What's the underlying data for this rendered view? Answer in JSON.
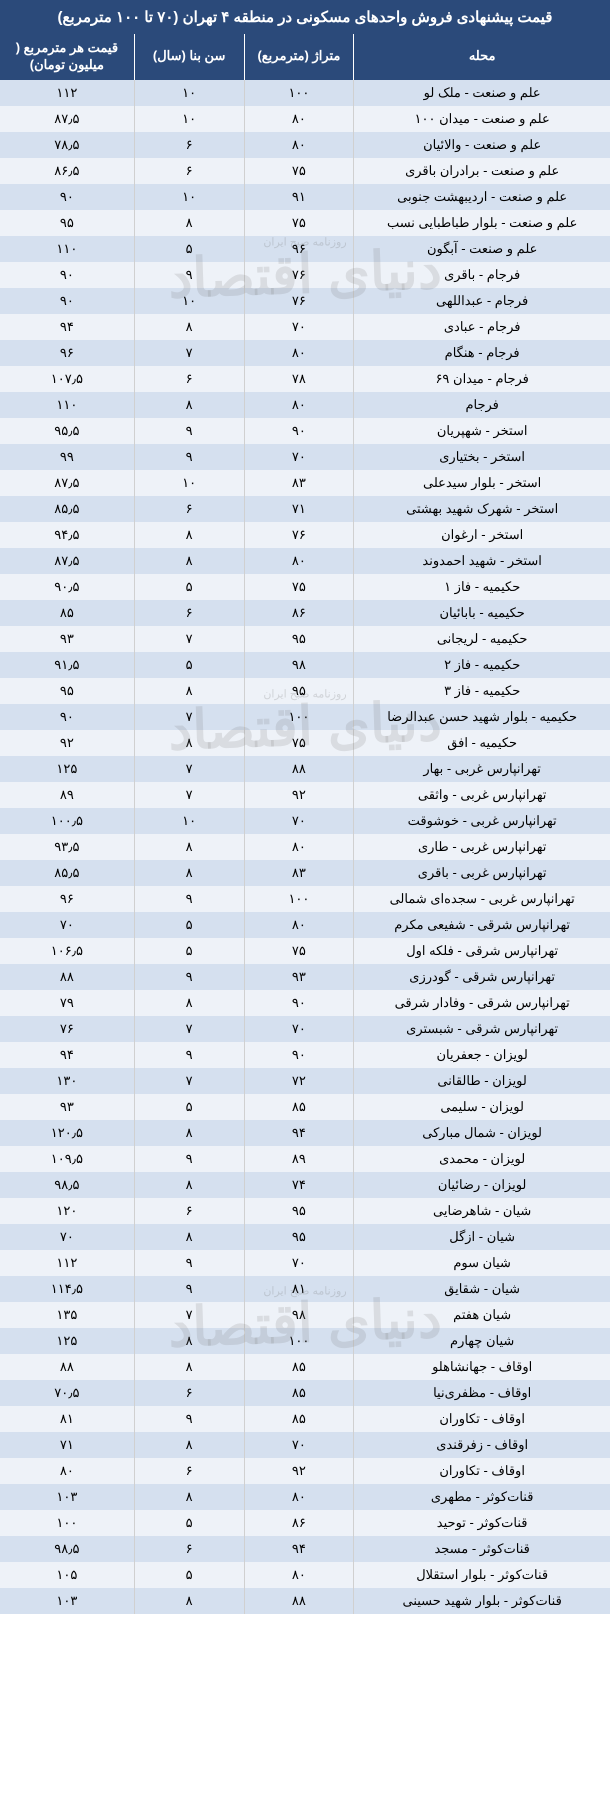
{
  "title": "قیمت پیشنهادی فروش واحدهای مسکونی در منطقه ۴ تهران (۷۰ تا ۱۰۰ مترمربع)",
  "colors": {
    "header_bg": "#2b4a7a",
    "row_odd": "#d5e0ef",
    "row_even": "#eef2f8",
    "text": "#000000",
    "header_text": "#ffffff"
  },
  "columns": [
    {
      "key": "neighborhood",
      "label": "محله"
    },
    {
      "key": "area",
      "label": "متراژ\n(مترمربع)"
    },
    {
      "key": "age",
      "label": "سن بنا\n(سال)"
    },
    {
      "key": "price",
      "label": "قیمت هر مترمربع\n( میلیون تومان)"
    }
  ],
  "watermark": {
    "main": "دنیای اقتصاد",
    "sub": "روزنامه صبح ایران"
  },
  "watermark_positions_pct": [
    17,
    45,
    82
  ],
  "rows": [
    {
      "neighborhood": "علم و صنعت - ملک لو",
      "area": "۱۰۰",
      "age": "۱۰",
      "price": "۱۱۲"
    },
    {
      "neighborhood": "علم و صنعت - میدان ۱۰۰",
      "area": "۸۰",
      "age": "۱۰",
      "price": "۸۷٫۵"
    },
    {
      "neighborhood": "علم و صنعت - والائیان",
      "area": "۸۰",
      "age": "۶",
      "price": "۷۸٫۵"
    },
    {
      "neighborhood": "علم و صنعت - برادران باقری",
      "area": "۷۵",
      "age": "۶",
      "price": "۸۶٫۵"
    },
    {
      "neighborhood": "علم و صنعت - اردیبهشت جنوبی",
      "area": "۹۱",
      "age": "۱۰",
      "price": "۹۰"
    },
    {
      "neighborhood": "علم و صنعت - بلوار طباطبایی نسب",
      "area": "۷۵",
      "age": "۸",
      "price": "۹۵"
    },
    {
      "neighborhood": "علم و صنعت - آبگون",
      "area": "۹۶",
      "age": "۵",
      "price": "۱۱۰"
    },
    {
      "neighborhood": "فرجام - باقری",
      "area": "۷۶",
      "age": "۹",
      "price": "۹۰"
    },
    {
      "neighborhood": "فرجام - عبداللهی",
      "area": "۷۶",
      "age": "۱۰",
      "price": "۹۰"
    },
    {
      "neighborhood": "فرجام - عبادی",
      "area": "۷۰",
      "age": "۸",
      "price": "۹۴"
    },
    {
      "neighborhood": "فرجام - هنگام",
      "area": "۸۰",
      "age": "۷",
      "price": "۹۶"
    },
    {
      "neighborhood": "فرجام - میدان ۶۹",
      "area": "۷۸",
      "age": "۶",
      "price": "۱۰۷٫۵"
    },
    {
      "neighborhood": "فرجام",
      "area": "۸۰",
      "age": "۸",
      "price": "۱۱۰"
    },
    {
      "neighborhood": "استخر - شهپریان",
      "area": "۹۰",
      "age": "۹",
      "price": "۹۵٫۵"
    },
    {
      "neighborhood": "استخر - بختیاری",
      "area": "۷۰",
      "age": "۹",
      "price": "۹۹"
    },
    {
      "neighborhood": "استخر - بلوار سیدعلی",
      "area": "۸۳",
      "age": "۱۰",
      "price": "۸۷٫۵"
    },
    {
      "neighborhood": "استخر - شهرک شهید بهشتی",
      "area": "۷۱",
      "age": "۶",
      "price": "۸۵٫۵"
    },
    {
      "neighborhood": "استخر - ارغوان",
      "area": "۷۶",
      "age": "۸",
      "price": "۹۴٫۵"
    },
    {
      "neighborhood": "استخر - شهید احمدوند",
      "area": "۸۰",
      "age": "۸",
      "price": "۸۷٫۵"
    },
    {
      "neighborhood": "حکیمیه - فاز ۱",
      "area": "۷۵",
      "age": "۵",
      "price": "۹۰٫۵"
    },
    {
      "neighborhood": "حکیمیه - بابائیان",
      "area": "۸۶",
      "age": "۶",
      "price": "۸۵"
    },
    {
      "neighborhood": "حکیمیه - لریجانی",
      "area": "۹۵",
      "age": "۷",
      "price": "۹۳"
    },
    {
      "neighborhood": "حکیمیه - فاز ۲",
      "area": "۹۸",
      "age": "۵",
      "price": "۹۱٫۵"
    },
    {
      "neighborhood": "حکیمیه - فاز ۳",
      "area": "۹۵",
      "age": "۸",
      "price": "۹۵"
    },
    {
      "neighborhood": "حکیمیه - بلوار شهید حسن عبدالرضا",
      "area": "۱۰۰",
      "age": "۷",
      "price": "۹۰"
    },
    {
      "neighborhood": "حکیمیه - افق",
      "area": "۷۵",
      "age": "۸",
      "price": "۹۲"
    },
    {
      "neighborhood": "تهرانپارس غربی - بهار",
      "area": "۸۸",
      "age": "۷",
      "price": "۱۲۵"
    },
    {
      "neighborhood": "تهرانپارس غربی - واثقی",
      "area": "۹۲",
      "age": "۷",
      "price": "۸۹"
    },
    {
      "neighborhood": "تهرانپارس غربی - خوشوقت",
      "area": "۷۰",
      "age": "۱۰",
      "price": "۱۰۰٫۵"
    },
    {
      "neighborhood": "تهرانپارس غربی - طاری",
      "area": "۸۰",
      "age": "۸",
      "price": "۹۳٫۵"
    },
    {
      "neighborhood": "تهرانپارس غربی - باقری",
      "area": "۸۳",
      "age": "۸",
      "price": "۸۵٫۵"
    },
    {
      "neighborhood": "تهرانپارس غربی - سجده‌ای شمالی",
      "area": "۱۰۰",
      "age": "۹",
      "price": "۹۶"
    },
    {
      "neighborhood": "تهرانپارس شرقی - شفیعی مکرم",
      "area": "۸۰",
      "age": "۵",
      "price": "۷۰"
    },
    {
      "neighborhood": "تهرانپارس شرقی - فلکه اول",
      "area": "۷۵",
      "age": "۵",
      "price": "۱۰۶٫۵"
    },
    {
      "neighborhood": "تهرانپارس شرقی - گودرزی",
      "area": "۹۳",
      "age": "۹",
      "price": "۸۸"
    },
    {
      "neighborhood": "تهرانپارس شرقی - وفادار شرقی",
      "area": "۹۰",
      "age": "۸",
      "price": "۷۹"
    },
    {
      "neighborhood": "تهرانپارس شرقی - شبستری",
      "area": "۷۰",
      "age": "۷",
      "price": "۷۶"
    },
    {
      "neighborhood": "لویزان - جعفریان",
      "area": "۹۰",
      "age": "۹",
      "price": "۹۴"
    },
    {
      "neighborhood": "لویزان - طالقانی",
      "area": "۷۲",
      "age": "۷",
      "price": "۱۳۰"
    },
    {
      "neighborhood": "لویزان - سلیمی",
      "area": "۸۵",
      "age": "۵",
      "price": "۹۳"
    },
    {
      "neighborhood": "لویزان - شمال مبارکی",
      "area": "۹۴",
      "age": "۸",
      "price": "۱۲۰٫۵"
    },
    {
      "neighborhood": "لویزان - محمدی",
      "area": "۸۹",
      "age": "۹",
      "price": "۱۰۹٫۵"
    },
    {
      "neighborhood": "لویزان - رضائیان",
      "area": "۷۴",
      "age": "۸",
      "price": "۹۸٫۵"
    },
    {
      "neighborhood": "شیان - شاهرضایی",
      "area": "۹۵",
      "age": "۶",
      "price": "۱۲۰"
    },
    {
      "neighborhood": "شیان - ازگل",
      "area": "۹۵",
      "age": "۸",
      "price": "۷۰"
    },
    {
      "neighborhood": "شیان سوم",
      "area": "۷۰",
      "age": "۹",
      "price": "۱۱۲"
    },
    {
      "neighborhood": "شیان - شقایق",
      "area": "۸۱",
      "age": "۹",
      "price": "۱۱۴٫۵"
    },
    {
      "neighborhood": "شیان هفتم",
      "area": "۹۸",
      "age": "۷",
      "price": "۱۳۵"
    },
    {
      "neighborhood": "شیان چهارم",
      "area": "۱۰۰",
      "age": "۸",
      "price": "۱۲۵"
    },
    {
      "neighborhood": "اوقاف - جهانشاهلو",
      "area": "۸۵",
      "age": "۸",
      "price": "۸۸"
    },
    {
      "neighborhood": "اوقاف - مظفری‌نیا",
      "area": "۸۵",
      "age": "۶",
      "price": "۷۰٫۵"
    },
    {
      "neighborhood": "اوقاف - تکاوران",
      "area": "۸۵",
      "age": "۹",
      "price": "۸۱"
    },
    {
      "neighborhood": "اوقاف - زفرقندی",
      "area": "۷۰",
      "age": "۸",
      "price": "۷۱"
    },
    {
      "neighborhood": "اوقاف - تکاوران",
      "area": "۹۲",
      "age": "۶",
      "price": "۸۰"
    },
    {
      "neighborhood": "قنات‌کوثر - مطهری",
      "area": "۸۰",
      "age": "۸",
      "price": "۱۰۳"
    },
    {
      "neighborhood": "قنات‌کوثر - توحید",
      "area": "۸۶",
      "age": "۵",
      "price": "۱۰۰"
    },
    {
      "neighborhood": "قنات‌کوثر - مسجد",
      "area": "۹۴",
      "age": "۶",
      "price": "۹۸٫۵"
    },
    {
      "neighborhood": "قنات‌کوثر - بلوار استقلال",
      "area": "۸۰",
      "age": "۵",
      "price": "۱۰۵"
    },
    {
      "neighborhood": "قنات‌کوثر - بلوار شهید حسینی",
      "area": "۸۸",
      "age": "۸",
      "price": "۱۰۳"
    }
  ]
}
